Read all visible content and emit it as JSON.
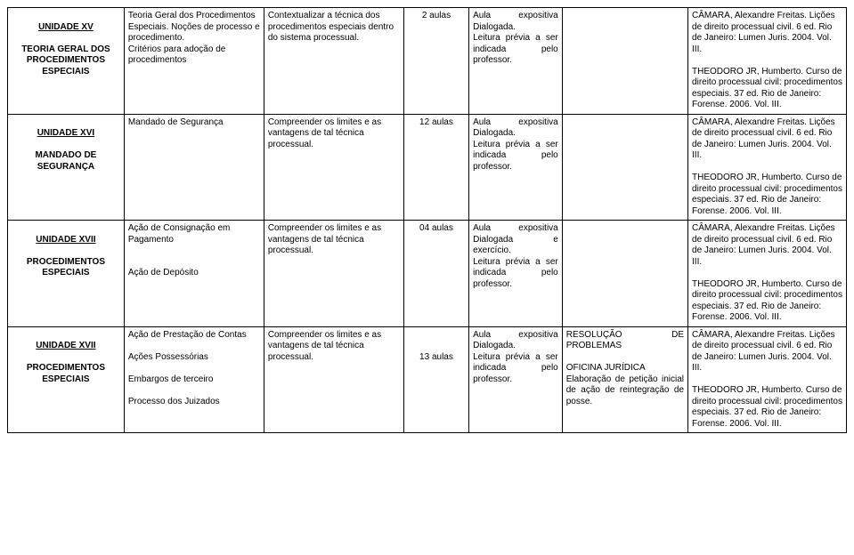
{
  "rows": [
    {
      "unit_title": "UNIDADE XV",
      "unit_sub": "TEORIA GERAL DOS PROCEDIMENTOS ESPECIAIS",
      "content": "Teoria Geral dos Procedimentos Especiais. Noções de processo e procedimento.\nCritérios para adoção de procedimentos",
      "objective": "Contextualizar a técnica dos procedimentos especiais dentro do sistema processual.",
      "hours": "2 aulas",
      "method": "Aula expositiva Dialogada.\nLeitura prévia a ser indicada pelo professor.",
      "extra": "",
      "biblio": "CÂMARA, Alexandre Freitas. Lições de direito processual civil. 6 ed. Rio de Janeiro: Lumen Juris. 2004. Vol. III.\n\nTHEODORO JR, Humberto. Curso de direito processual civil: procedimentos especiais. 37 ed. Rio de Janeiro: Forense. 2006. Vol. III."
    },
    {
      "unit_title": "UNIDADE XVI",
      "unit_sub": "MANDADO DE SEGURANÇA",
      "content": "Mandado de Segurança",
      "objective": "Compreender os limites e as vantagens de tal técnica processual.",
      "hours": "12 aulas",
      "method": "Aula expositiva Dialogada.\nLeitura prévia a ser indicada pelo professor.",
      "extra": "",
      "biblio": "CÂMARA, Alexandre Freitas. Lições de direito processual civil. 6 ed. Rio de Janeiro: Lumen Juris. 2004. Vol. III.\n\nTHEODORO JR, Humberto. Curso de direito processual civil: procedimentos especiais. 37 ed. Rio de Janeiro: Forense. 2006. Vol. III."
    },
    {
      "unit_title": "UNIDADE XVII",
      "unit_sub": "PROCEDIMENTOS ESPECIAIS",
      "content": "Ação de Consignação em Pagamento\n\n\nAção de Depósito",
      "objective": "Compreender os limites e as vantagens de tal técnica processual.",
      "hours": "04 aulas",
      "method": "Aula expositiva Dialogada e exercício.\nLeitura prévia a ser indicada pelo professor.",
      "extra": "",
      "biblio": "CÂMARA, Alexandre Freitas. Lições de direito processual civil. 6 ed. Rio de Janeiro: Lumen Juris. 2004. Vol. III.\n\nTHEODORO JR, Humberto. Curso de direito processual civil: procedimentos especiais. 37 ed. Rio de Janeiro: Forense. 2006. Vol. III."
    },
    {
      "unit_title": "UNIDADE XVII",
      "unit_sub": "PROCEDIMENTOS ESPECIAIS",
      "content": "Ação de Prestação de Contas\n\nAções Possessórias\n\nEmbargos de terceiro\n\nProcesso dos Juizados",
      "objective": "Compreender os limites e as vantagens de tal técnica processual.",
      "hours": "13 aulas",
      "method": "Aula expositiva Dialogada.\nLeitura prévia a ser indicada pelo professor.",
      "extra": "RESOLUÇÃO DE PROBLEMAS\n\nOFICINA JURÍDICA\nElaboração de petição inicial de ação de reintegração de posse.",
      "biblio": "CÂMARA, Alexandre Freitas. Lições de direito processual civil. 6 ed. Rio de Janeiro: Lumen Juris. 2004. Vol. III.\n\nTHEODORO JR, Humberto. Curso de direito processual civil: procedimentos especiais. 37 ed. Rio de Janeiro: Forense. 2006. Vol. III."
    }
  ]
}
